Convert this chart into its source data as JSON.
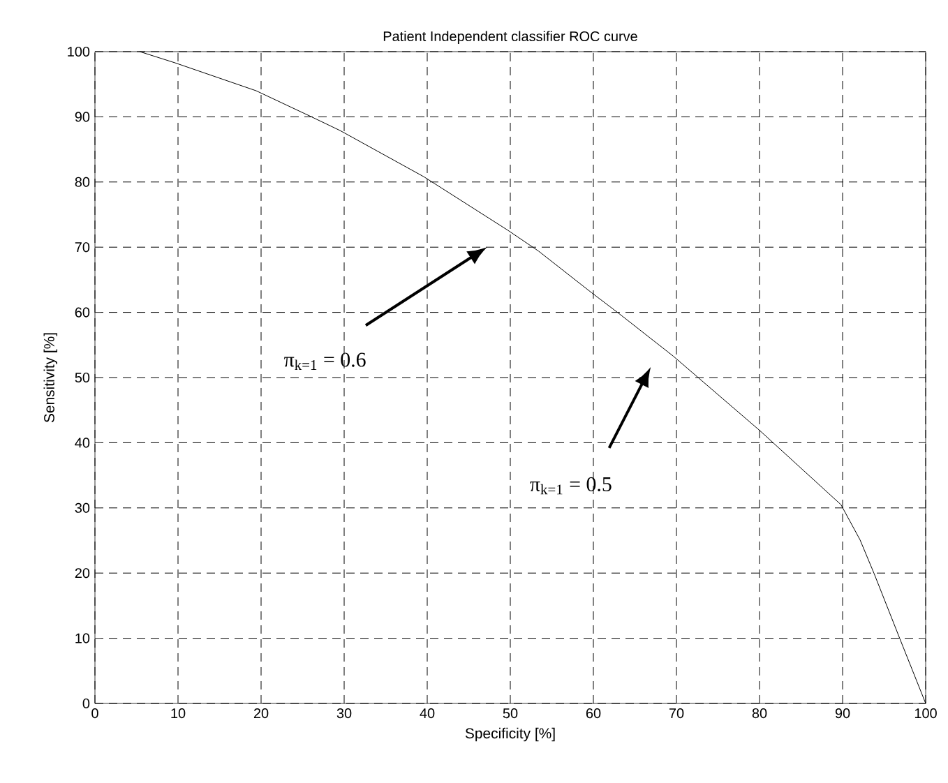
{
  "chart_data": {
    "type": "line",
    "title": "Patient Independent classifier ROC curve",
    "xlabel": "Specificity [%]",
    "ylabel": "Sensitivity [%]",
    "x": [
      5.4,
      9.6,
      19.4,
      25.9,
      29.5,
      39.6,
      49.7,
      53.4,
      59.8,
      62.9,
      69.6,
      72.7,
      80,
      89.8,
      92.1,
      93.8,
      96.9,
      100
    ],
    "series": [
      {
        "color": "#000000",
        "values": [
          100,
          98.3,
          94,
          90.1,
          87.9,
          80.8,
          72.6,
          69.4,
          63,
          60,
          53.3,
          49.9,
          41.9,
          30.5,
          25.1,
          19.9,
          9.9,
          0
        ]
      }
    ],
    "xlim": [
      0,
      100
    ],
    "ylim": [
      0,
      100
    ],
    "xticks": [
      0,
      10,
      20,
      30,
      40,
      50,
      60,
      70,
      80,
      90,
      100
    ],
    "yticks": [
      0,
      10,
      20,
      30,
      40,
      50,
      60,
      70,
      80,
      90,
      100
    ],
    "grid": true,
    "marker": "none",
    "line_style": "solid",
    "annotations": [
      "π$_{k=1}$ = 0.6",
      "π$_{k=1}$ = 0.5"
    ]
  }
}
